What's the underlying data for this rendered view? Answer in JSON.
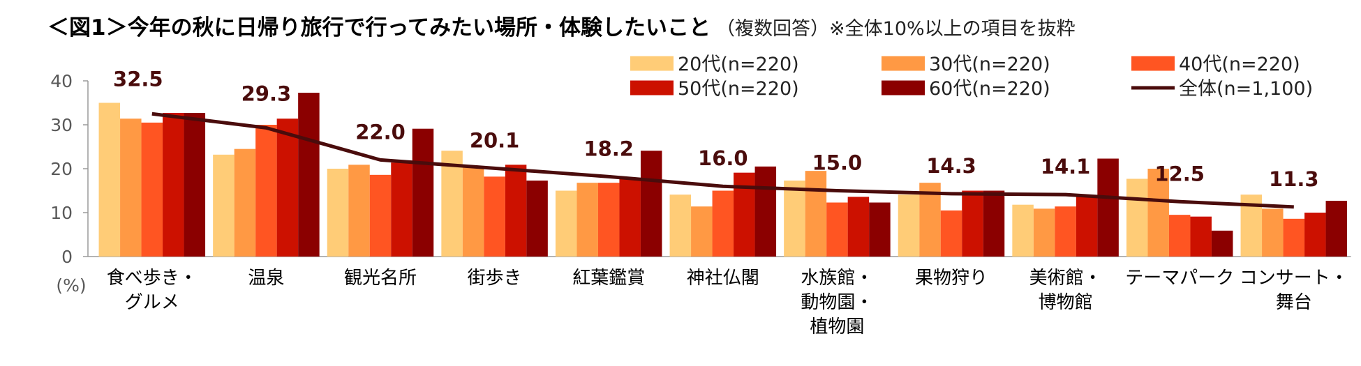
{
  "header": {
    "title": "＜図1＞今年の秋に日帰り旅行で行ってみたい場所・体験したいこと",
    "subtitle": "（複数回答）※全体10%以上の項目を抜粋"
  },
  "chart_data": {
    "type": "bar",
    "title": "＜図1＞今年の秋に日帰り旅行で行ってみたい場所・体験したいこと",
    "subtitle": "（複数回答）※全体10%以上の項目を抜粋",
    "ylabel": "(%)",
    "ylim": [
      0,
      40
    ],
    "yticks": [
      0,
      10,
      20,
      30,
      40
    ],
    "grid": false,
    "legend_position": "top-right",
    "categories": [
      [
        "食べ歩き・",
        "グルメ"
      ],
      [
        "温泉"
      ],
      [
        "観光名所"
      ],
      [
        "街歩き"
      ],
      [
        "紅葉鑑賞"
      ],
      [
        "神社仏閣"
      ],
      [
        "水族館・",
        "動物園・",
        "植物園"
      ],
      [
        "果物狩り"
      ],
      [
        "美術館・",
        "博物館"
      ],
      [
        "テーマパーク"
      ],
      [
        "コンサート・",
        "舞台"
      ]
    ],
    "series": [
      {
        "name": "20代(n=220)",
        "color": "#FFCC77",
        "values": [
          35.0,
          23.2,
          20.0,
          24.1,
          15.0,
          14.1,
          17.3,
          14.1,
          11.8,
          17.7,
          14.1
        ]
      },
      {
        "name": "30代(n=220)",
        "color": "#FF9944",
        "values": [
          31.4,
          24.5,
          20.9,
          20.5,
          16.8,
          11.4,
          19.5,
          16.8,
          10.9,
          20.0,
          10.9
        ]
      },
      {
        "name": "40代(n=220)",
        "color": "#FF5522",
        "values": [
          30.5,
          30.0,
          18.6,
          18.2,
          16.8,
          15.0,
          12.3,
          10.5,
          11.4,
          9.5,
          8.6
        ]
      },
      {
        "name": "50代(n=220)",
        "color": "#CC1100",
        "values": [
          32.7,
          31.4,
          21.4,
          20.9,
          17.7,
          19.1,
          13.6,
          15.0,
          13.6,
          9.1,
          10.0
        ]
      },
      {
        "name": "60代(n=220)",
        "color": "#8B0000",
        "values": [
          32.7,
          37.3,
          29.1,
          17.3,
          24.1,
          20.5,
          12.3,
          15.0,
          22.3,
          5.9,
          12.7
        ]
      }
    ],
    "line_series": {
      "name": "全体(n=1,100)",
      "color": "#4A0C0C",
      "values": [
        32.5,
        29.3,
        22.0,
        20.1,
        18.2,
        16.0,
        15.0,
        14.3,
        14.1,
        12.5,
        11.3
      ],
      "labels": [
        "32.5",
        "29.3",
        "22.0",
        "20.1",
        "18.2",
        "16.0",
        "15.0",
        "14.3",
        "14.1",
        "12.5",
        "11.3"
      ]
    }
  }
}
